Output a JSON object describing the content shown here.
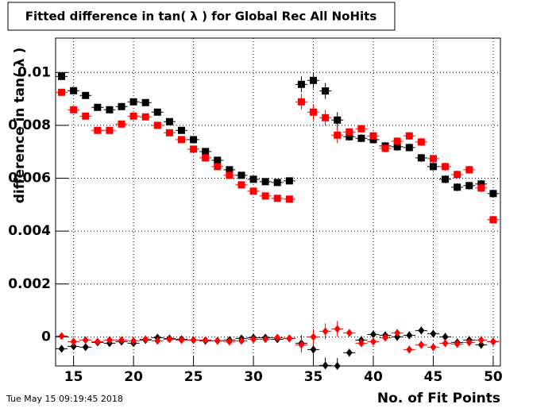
{
  "chart_data": {
    "type": "scatter",
    "title": "Fitted difference in tan( λ ) for Global Rec All NoHits",
    "xlabel": "No. of Fit Points",
    "ylabel": "difference in tan( λ )",
    "timestamp": "Tue May 15 09:19:45 2018",
    "x": [
      14,
      15,
      16,
      17,
      18,
      19,
      20,
      21,
      22,
      23,
      24,
      25,
      26,
      27,
      28,
      29,
      30,
      31,
      32,
      33,
      34,
      35,
      36,
      37,
      38,
      39,
      40,
      41,
      42,
      43,
      44,
      45,
      46,
      47,
      48,
      49,
      50
    ],
    "xlim": [
      13.5,
      50.6
    ],
    "ylim": [
      -0.0011,
      0.0113
    ],
    "xticks": [
      15,
      20,
      25,
      30,
      35,
      40,
      45,
      50
    ],
    "yticks": [
      0,
      0.002,
      0.004,
      0.006,
      0.008,
      0.01
    ],
    "grid": true,
    "series": [
      {
        "color": "#000000",
        "marker": "square",
        "values": [
          0.00985,
          0.00931,
          0.00913,
          0.00868,
          0.00859,
          0.00871,
          0.00889,
          0.00886,
          0.0085,
          0.00814,
          0.00781,
          0.00746,
          0.00701,
          0.00668,
          0.00632,
          0.00611,
          0.00596,
          0.00587,
          0.00584,
          0.0059,
          0.00955,
          0.0097,
          0.0093,
          0.0082,
          0.00757,
          0.00751,
          0.00746,
          0.00722,
          0.00719,
          0.00716,
          0.00677,
          0.00644,
          0.00596,
          0.00566,
          0.00572,
          0.00578,
          0.00542
        ],
        "errors": [
          0.0001,
          0.0001,
          0.0001,
          0.0001,
          0.0001,
          0.0001,
          0.0001,
          0.0001,
          0.0001,
          0.0001,
          0.0001,
          0.0001,
          0.0001,
          0.0001,
          0.0001,
          0.0001,
          0.0001,
          0.0001,
          0.0001,
          0.0001,
          0.0003,
          0.0003,
          0.0003,
          0.0003,
          0.00015,
          0.00015,
          0.00015,
          0.00015,
          0.00015,
          0.00015,
          0.00015,
          0.00015,
          0.00015,
          0.00015,
          0.00015,
          0.00015,
          0.00015
        ]
      },
      {
        "color": "#ff0000",
        "marker": "square",
        "values": [
          0.00925,
          0.00859,
          0.00835,
          0.00781,
          0.00781,
          0.00805,
          0.00835,
          0.00832,
          0.008,
          0.00772,
          0.00746,
          0.0071,
          0.00677,
          0.00644,
          0.00611,
          0.00575,
          0.00551,
          0.00533,
          0.00524,
          0.00521,
          0.00889,
          0.0085,
          0.00829,
          0.00763,
          0.00775,
          0.00787,
          0.0076,
          0.00713,
          0.0074,
          0.0076,
          0.00737,
          0.00674,
          0.00644,
          0.00614,
          0.00632,
          0.00563,
          0.00443
        ],
        "errors": [
          0.0001,
          0.0001,
          0.0001,
          0.0001,
          0.0001,
          0.0001,
          0.0001,
          0.0001,
          0.0001,
          0.0001,
          0.0001,
          0.0001,
          0.0001,
          0.0001,
          0.0001,
          0.0001,
          0.0001,
          0.0001,
          0.0001,
          0.0001,
          0.0003,
          0.0003,
          0.0003,
          0.0003,
          0.00015,
          0.00015,
          0.00015,
          0.00015,
          0.00015,
          0.00015,
          0.00015,
          0.00015,
          0.00015,
          0.00015,
          0.00015,
          0.00015,
          0.00015
        ]
      },
      {
        "color": "#000000",
        "marker": "diamond",
        "values": [
          -0.00045,
          -0.00036,
          -0.00039,
          -0.00021,
          -0.00024,
          -0.00018,
          -0.00024,
          -0.00012,
          -3e-05,
          -6e-05,
          -9e-05,
          -0.00012,
          -0.00015,
          -0.00015,
          -0.00012,
          -6e-05,
          -3e-05,
          -3e-05,
          -9e-05,
          -6e-05,
          -0.00024,
          -0.00048,
          -0.00108,
          -0.0011,
          -0.0006,
          -0.00012,
          9e-05,
          6e-05,
          0,
          6e-05,
          0.00024,
          0.00012,
          0,
          -0.00021,
          -0.00012,
          -0.0003,
          -0.00018
        ],
        "errors": [
          0.0001,
          0.0001,
          0.0001,
          0.0001,
          0.0001,
          0.0001,
          0.0001,
          0.0001,
          0.0001,
          0.0001,
          0.0001,
          0.0001,
          0.0001,
          0.0001,
          0.0001,
          0.0001,
          0.0001,
          0.0001,
          0.0001,
          0.0001,
          0.0003,
          0.0003,
          0.0003,
          0.0003,
          0.00015,
          0.00015,
          0.00015,
          0.00015,
          0.00015,
          0.00015,
          0.00015,
          0.00015,
          0.00015,
          0.00015,
          0.00015,
          0.00015,
          0.00015
        ]
      },
      {
        "color": "#ff0000",
        "marker": "diamond",
        "values": [
          3e-05,
          -0.00018,
          -0.00012,
          -0.00018,
          -0.00012,
          -0.00012,
          -0.00015,
          -9e-05,
          -0.00015,
          -9e-05,
          -0.00012,
          -0.00012,
          -0.00012,
          -0.00015,
          -0.00018,
          -0.00015,
          -9e-05,
          -9e-05,
          -3e-05,
          -6e-05,
          -0.0003,
          0,
          0.00021,
          0.0003,
          0.00015,
          -0.00024,
          -0.00018,
          -3e-05,
          0.00015,
          -0.00048,
          -0.0003,
          -0.00039,
          -0.00024,
          -0.00027,
          -0.00021,
          -0.00012,
          -0.00018
        ],
        "errors": [
          0.0001,
          0.0001,
          0.0001,
          0.0001,
          0.0001,
          0.0001,
          0.0001,
          0.0001,
          0.0001,
          0.0001,
          0.0001,
          0.0001,
          0.0001,
          0.0001,
          0.0001,
          0.0001,
          0.0001,
          0.0001,
          0.0001,
          0.0001,
          0.0003,
          0.0003,
          0.0003,
          0.0003,
          0.00015,
          0.00015,
          0.00015,
          0.00015,
          0.00015,
          0.00015,
          0.00015,
          0.00015,
          0.00015,
          0.00015,
          0.00015,
          0.00015,
          0.00015
        ]
      }
    ]
  }
}
